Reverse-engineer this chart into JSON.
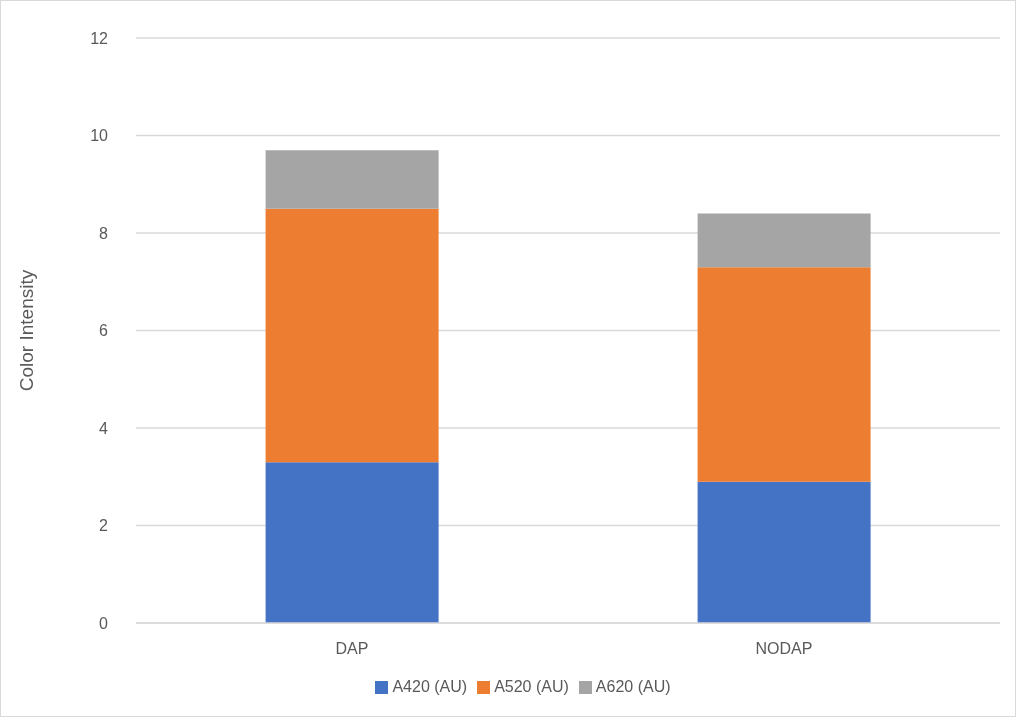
{
  "chart_data": {
    "type": "bar",
    "stacked": true,
    "ylabel": "Color Intensity",
    "categories": [
      "DAP",
      "NODAP"
    ],
    "series": [
      {
        "name": "A420 (AU)",
        "color": "#4472c4",
        "values": [
          3.3,
          2.9
        ]
      },
      {
        "name": "A520 (AU)",
        "color": "#ed7d31",
        "values": [
          5.2,
          4.4
        ]
      },
      {
        "name": "A620 (AU)",
        "color": "#a5a5a5",
        "values": [
          1.2,
          1.1
        ]
      }
    ],
    "ylim": [
      0,
      12
    ],
    "yticks": [
      0,
      2,
      4,
      6,
      8,
      10,
      12
    ],
    "grid": "y",
    "legend": "bottom"
  }
}
